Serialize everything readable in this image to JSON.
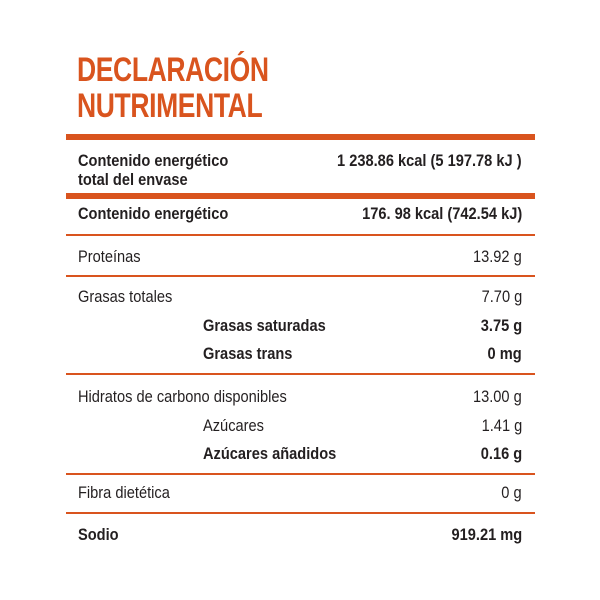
{
  "title": {
    "line1": "DECLARACIÓN",
    "line2": "NUTRIMENTAL"
  },
  "colors": {
    "accent": "#d9541e",
    "text": "#231f20"
  },
  "rows": {
    "energy_total_line1": "Contenido energético",
    "energy_total_line2": "total del envase",
    "energy_total_value": "1 238.86 kcal  (5 197.78 kJ )",
    "energy_label": "Contenido energético",
    "energy_value": "176. 98 kcal (742.54 kJ)",
    "protein_label": "Proteínas",
    "protein_value": "13.92 g",
    "fat_label": "Grasas totales",
    "fat_value": "7.70 g",
    "sat_fat_label": "Grasas saturadas",
    "sat_fat_value": "3.75 g",
    "trans_fat_label": "Grasas trans",
    "trans_fat_value": "0 mg",
    "carbs_label": "Hidratos de carbono disponibles",
    "carbs_value": "13.00 g",
    "sugars_label": "Azúcares",
    "sugars_value": "1.41 g",
    "added_sugars_label": "Azúcares añadidos",
    "added_sugars_value": "0.16 g",
    "fiber_label": "Fibra dietética",
    "fiber_value": "0 g",
    "sodium_label": "Sodio",
    "sodium_value": "919.21 mg"
  }
}
